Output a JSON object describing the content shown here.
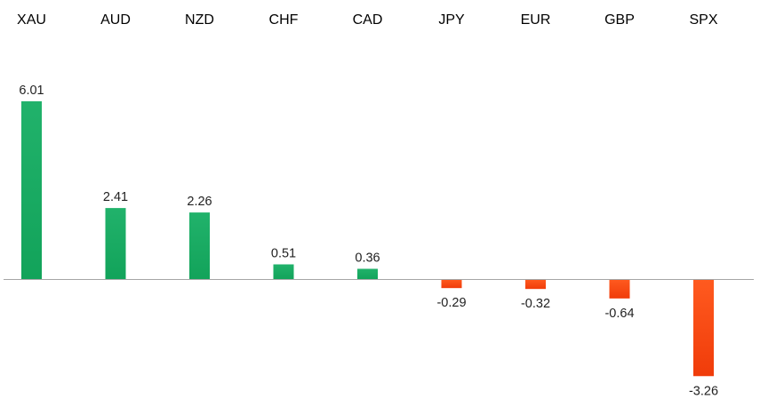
{
  "chart_data": {
    "type": "bar",
    "categories": [
      "XAU",
      "AUD",
      "NZD",
      "CHF",
      "CAD",
      "JPY",
      "EUR",
      "GBP",
      "SPX"
    ],
    "values": [
      6.01,
      2.41,
      2.26,
      0.51,
      0.36,
      -0.29,
      -0.32,
      -0.64,
      -3.26
    ],
    "value_labels": [
      "6.01",
      "2.41",
      "2.26",
      "0.51",
      "0.36",
      "-0.29",
      "-0.32",
      "-0.64",
      "-3.26"
    ],
    "title": "",
    "xlabel": "",
    "ylabel": "",
    "ylim": [
      -3.26,
      6.01
    ],
    "grid": false,
    "legend": "none",
    "category_label_position": "top",
    "colors": {
      "positive_top": "#21b26b",
      "positive_bottom": "#12a35a",
      "negative_top": "#ff5a1f",
      "negative_bottom": "#f03c0a",
      "axis": "#a6a6a6"
    }
  }
}
